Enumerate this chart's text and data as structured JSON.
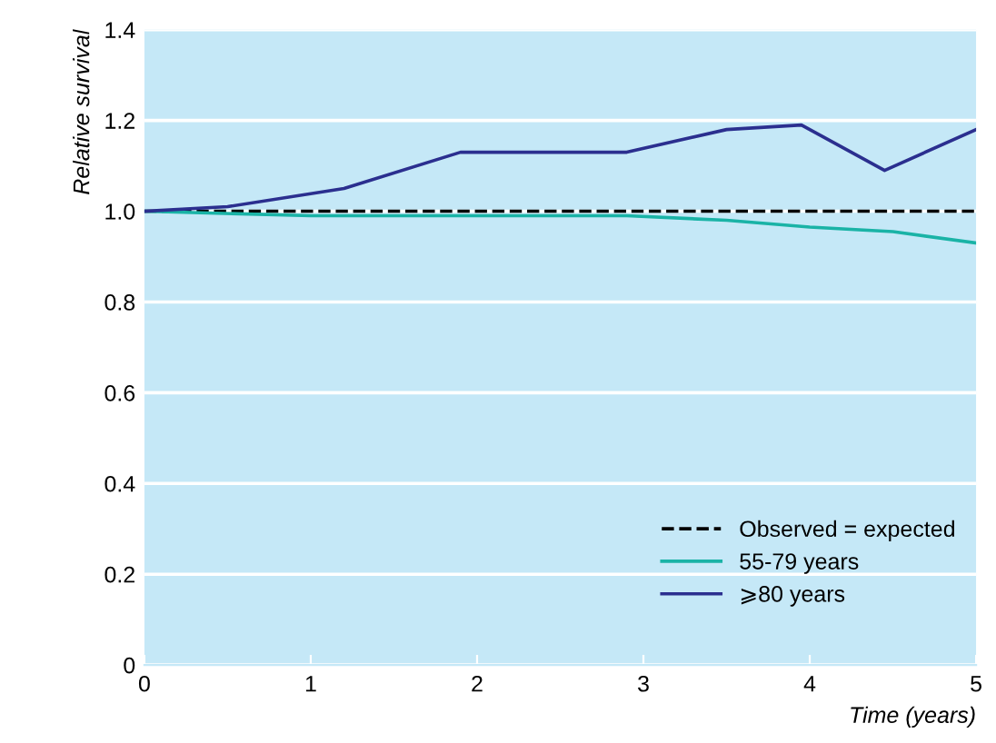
{
  "chart_data": {
    "type": "line",
    "xlabel": "Time (years)",
    "ylabel": "Relative survival",
    "xlim": [
      0,
      5
    ],
    "xticks": [
      0,
      1,
      2,
      3,
      4,
      5
    ],
    "ylim": [
      0,
      1.4
    ],
    "yticks": [
      0,
      0.2,
      0.4,
      0.6,
      0.8,
      {
        "value": 1,
        "label": "1.0"
      },
      1.2,
      1.4
    ],
    "ref_lines": [
      {
        "axis": "y",
        "value": 1.0,
        "label": "Observed = expected",
        "color": "#000000",
        "line_style": "dashed"
      }
    ],
    "series": [
      {
        "name": "55-79 years",
        "color": "#1ab3a6",
        "x": [
          0,
          1,
          2,
          2.9,
          3.5,
          4,
          4.5,
          5
        ],
        "values": [
          1.0,
          0.99,
          0.99,
          0.99,
          0.98,
          0.965,
          0.955,
          0.93
        ]
      },
      {
        "name": "⩾80 years",
        "color": "#2b2f8f",
        "x": [
          0,
          0.5,
          1.2,
          1.9,
          2.9,
          3.5,
          3.95,
          4.45,
          5
        ],
        "values": [
          1.0,
          1.01,
          1.05,
          1.13,
          1.13,
          1.18,
          1.19,
          1.09,
          1.18
        ]
      }
    ],
    "grid": "y",
    "legend": "bottom right",
    "line_style": "solid",
    "marker": "none"
  }
}
